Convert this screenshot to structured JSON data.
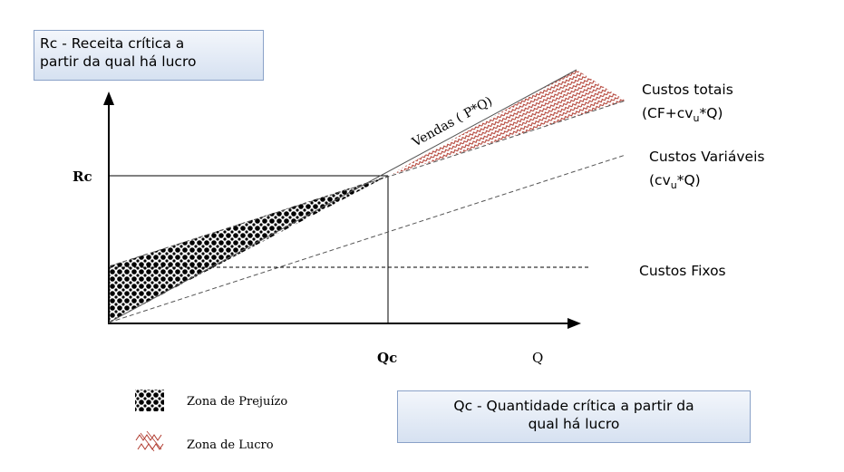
{
  "callouts": {
    "rc": {
      "line1": "Rc - Receita crítica a",
      "line2": "partir da qual há lucro"
    },
    "qc": {
      "line1": "Qc - Quantidade crítica a partir da",
      "line2": "qual há lucro"
    }
  },
  "axis_labels": {
    "rc": "Rc",
    "qc": "Qc",
    "q": "Q"
  },
  "line_labels": {
    "vendas": "Vendas ( P*Q)",
    "custos_totais_1": "Custos totais",
    "custos_totais_2a": "(CF+cv",
    "custos_totais_2b": "u",
    "custos_totais_2c": "*Q)",
    "custos_variaveis_1": "Custos Variáveis",
    "custos_variaveis_2a": "(cv",
    "custos_variaveis_2b": "u",
    "custos_variaveis_2c": "*Q)",
    "custos_fixos": "Custos Fixos"
  },
  "legend": {
    "prejuizo": "Zona de Prejuízo",
    "lucro": "Zona de Lucro"
  },
  "colors": {
    "axis": "#000000",
    "lines": "#555555",
    "loss_zone": "#000000",
    "profit_zone": "#b03a2e",
    "callout_border": "#8aa2c8"
  }
}
